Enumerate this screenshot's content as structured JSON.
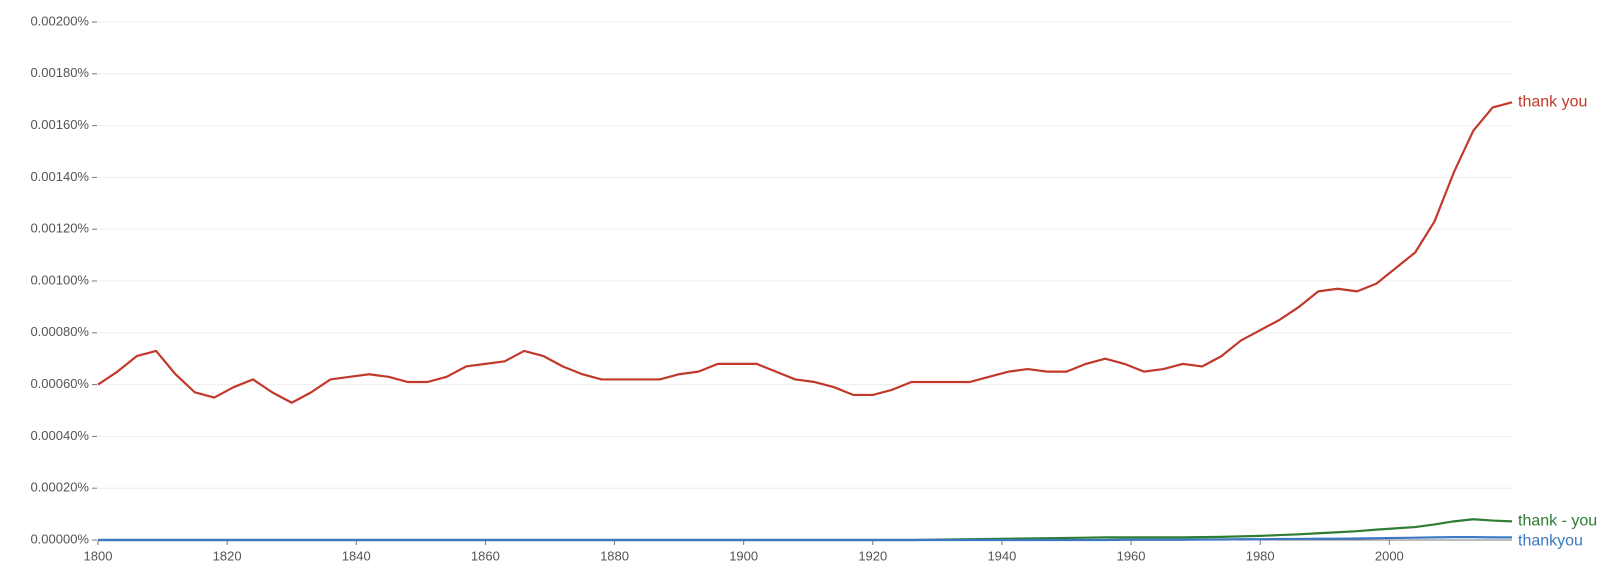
{
  "chart_data": {
    "type": "line",
    "x": [
      1800,
      1803,
      1806,
      1809,
      1812,
      1815,
      1818,
      1821,
      1824,
      1827,
      1830,
      1833,
      1836,
      1839,
      1842,
      1845,
      1848,
      1851,
      1854,
      1857,
      1860,
      1863,
      1866,
      1869,
      1872,
      1875,
      1878,
      1881,
      1884,
      1887,
      1890,
      1893,
      1896,
      1899,
      1902,
      1905,
      1908,
      1911,
      1914,
      1917,
      1920,
      1923,
      1926,
      1929,
      1932,
      1935,
      1938,
      1941,
      1944,
      1947,
      1950,
      1953,
      1956,
      1959,
      1962,
      1965,
      1968,
      1971,
      1974,
      1977,
      1980,
      1983,
      1986,
      1989,
      1992,
      1995,
      1998,
      2001,
      2004,
      2007,
      2010,
      2013,
      2016,
      2019
    ],
    "series": [
      {
        "name": "thank you",
        "color": "#c0392b",
        "values": [
          0.0006,
          0.00065,
          0.00071,
          0.00073,
          0.00064,
          0.00057,
          0.00055,
          0.00059,
          0.00062,
          0.00057,
          0.00053,
          0.00057,
          0.00062,
          0.00063,
          0.00064,
          0.00063,
          0.00061,
          0.00061,
          0.00063,
          0.00067,
          0.00068,
          0.00069,
          0.00073,
          0.00071,
          0.00067,
          0.00064,
          0.00062,
          0.00062,
          0.00062,
          0.00062,
          0.00064,
          0.00065,
          0.00068,
          0.00068,
          0.00068,
          0.00065,
          0.00062,
          0.00061,
          0.00059,
          0.00056,
          0.00056,
          0.00058,
          0.00061,
          0.00061,
          0.00061,
          0.00061,
          0.00063,
          0.00065,
          0.00066,
          0.00065,
          0.00065,
          0.00068,
          0.0007,
          0.00068,
          0.00065,
          0.00066,
          0.00068,
          0.00067,
          0.00071,
          0.00077,
          0.00081,
          0.00085,
          0.0009,
          0.00096,
          0.00097,
          0.00096,
          0.00099,
          0.00105,
          0.00111,
          0.00123,
          0.00142,
          0.00158,
          0.00167,
          0.00169
        ]
      },
      {
        "name": "thank - you",
        "color": "#2e7d32",
        "values": [
          0,
          0,
          0,
          0,
          0,
          0,
          0,
          0,
          0,
          0,
          0,
          0,
          0,
          0,
          0,
          0,
          0,
          0,
          0,
          0,
          0,
          0,
          0,
          0,
          0,
          0,
          0,
          0,
          0,
          0,
          0,
          0,
          0,
          0,
          0,
          0,
          0,
          0,
          0,
          0,
          0,
          0,
          0,
          1e-06,
          2e-06,
          3e-06,
          4e-06,
          5e-06,
          6e-06,
          7e-06,
          8e-06,
          9e-06,
          1e-05,
          1e-05,
          1e-05,
          1e-05,
          1e-05,
          1.1e-05,
          1.2e-05,
          1.4e-05,
          1.6e-05,
          1.9e-05,
          2.2e-05,
          2.6e-05,
          3e-05,
          3.4e-05,
          4e-05,
          4.5e-05,
          5e-05,
          6e-05,
          7.2e-05,
          8e-05,
          7.5e-05,
          7.2e-05
        ]
      },
      {
        "name": "thankyou",
        "color": "#3b78c3",
        "values": [
          0,
          0,
          0,
          0,
          0,
          0,
          0,
          0,
          0,
          0,
          0,
          0,
          0,
          0,
          0,
          0,
          0,
          0,
          0,
          0,
          0,
          0,
          0,
          0,
          0,
          0,
          0,
          0,
          0,
          0,
          0,
          0,
          0,
          0,
          0,
          0,
          0,
          0,
          0,
          0,
          0,
          0,
          0,
          0,
          0,
          0,
          0,
          0,
          0,
          0,
          0,
          0,
          0,
          1e-06,
          1e-06,
          1e-06,
          1e-06,
          2e-06,
          2e-06,
          3e-06,
          3e-06,
          4e-06,
          4e-06,
          5e-06,
          5e-06,
          6e-06,
          7e-06,
          8e-06,
          9e-06,
          1e-05,
          1.1e-05,
          1.1e-05,
          1e-05,
          1e-05
        ]
      }
    ],
    "xlim": [
      1800,
      2019
    ],
    "xticks": [
      1800,
      1820,
      1840,
      1860,
      1880,
      1900,
      1920,
      1940,
      1960,
      1980,
      2000
    ],
    "ylim": [
      0,
      0.002
    ],
    "yticks": [
      {
        "value": 0,
        "label": "0.00000%"
      },
      {
        "value": 0.0002,
        "label": "0.00020%"
      },
      {
        "value": 0.0004,
        "label": "0.00040%"
      },
      {
        "value": 0.0006,
        "label": "0.00060%"
      },
      {
        "value": 0.0008,
        "label": "0.00080%"
      },
      {
        "value": 0.001,
        "label": "0.00100%"
      },
      {
        "value": 0.0012,
        "label": "0.00120%"
      },
      {
        "value": 0.0014,
        "label": "0.00140%"
      },
      {
        "value": 0.0016,
        "label": "0.00160%"
      },
      {
        "value": 0.0018,
        "label": "0.00180%"
      },
      {
        "value": 0.002,
        "label": "0.00200%"
      }
    ],
    "grid": true
  }
}
